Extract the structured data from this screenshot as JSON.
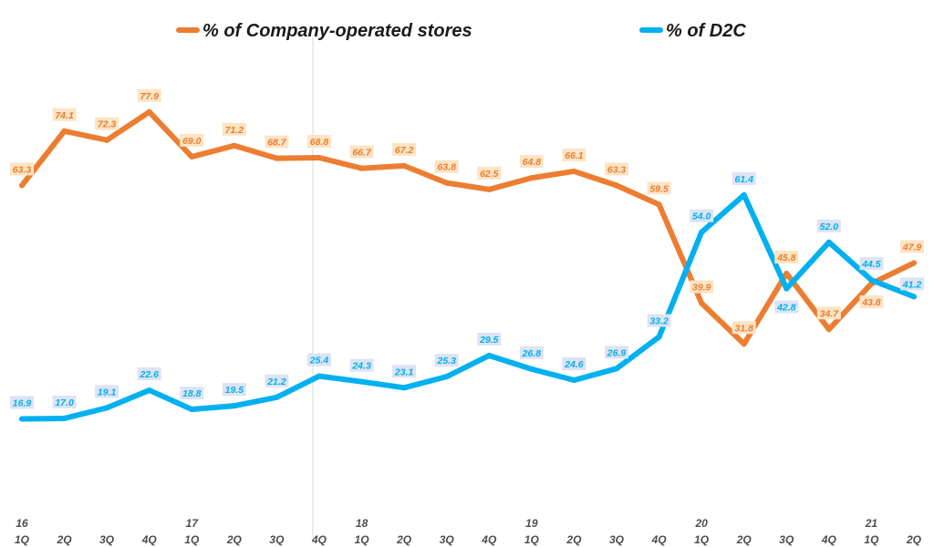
{
  "chart_data": {
    "type": "line",
    "title": "",
    "xlabel": "",
    "ylabel": "",
    "ylim": [
      0,
      100
    ],
    "grid": false,
    "legend_position": "top-center",
    "categories": [
      "1Q",
      "2Q",
      "3Q",
      "4Q",
      "1Q",
      "2Q",
      "3Q",
      "4Q",
      "1Q",
      "2Q",
      "3Q",
      "4Q",
      "1Q",
      "2Q",
      "3Q",
      "4Q",
      "1Q",
      "2Q",
      "3Q",
      "4Q",
      "1Q",
      "2Q"
    ],
    "year_labels": [
      {
        "index": 0,
        "label": "16"
      },
      {
        "index": 4,
        "label": "17"
      },
      {
        "index": 8,
        "label": "18"
      },
      {
        "index": 12,
        "label": "19"
      },
      {
        "index": 16,
        "label": "20"
      },
      {
        "index": 20,
        "label": "21"
      }
    ],
    "series": [
      {
        "name": "% of Company-operated stores",
        "color": "#ED7D31",
        "label_bg": "#FCE4C4",
        "label_color": "#ED7D31",
        "values": [
          63.3,
          74.1,
          72.3,
          77.9,
          69.0,
          71.2,
          68.7,
          68.8,
          66.7,
          67.2,
          63.8,
          62.5,
          64.8,
          66.1,
          63.3,
          59.5,
          39.9,
          31.8,
          45.8,
          34.7,
          43.8,
          47.9
        ],
        "labels": [
          "63.3",
          "74.1",
          "72.3",
          "77.9",
          "69.0",
          "71.2",
          "68.7",
          "68.8",
          "66.7",
          "67.2",
          "63.8",
          "62.5",
          "64.8",
          "66.1",
          "63.3",
          "59.5",
          "39.9",
          "31.8",
          "45.8",
          "34.7",
          "43.8",
          "47.9"
        ]
      },
      {
        "name": "% of D2C",
        "color": "#00B0F0",
        "label_bg": "#DDE3F3",
        "label_color": "#00B0F0",
        "values": [
          16.9,
          17.0,
          19.1,
          22.6,
          18.8,
          19.5,
          21.2,
          25.4,
          24.3,
          23.1,
          25.3,
          29.5,
          26.8,
          24.6,
          26.9,
          33.2,
          54.0,
          61.4,
          42.8,
          52.0,
          44.5,
          41.2
        ],
        "labels": [
          "16.9",
          "17.0",
          "19.1",
          "22.6",
          "18.8",
          "19.5",
          "21.2",
          "25.4",
          "24.3",
          "23.1",
          "25.3",
          "29.5",
          "26.8",
          "24.6",
          "26.9",
          "33.2",
          "54.0",
          "61.4",
          "42.8",
          "52.0",
          "44.5",
          "41.2"
        ]
      }
    ]
  }
}
